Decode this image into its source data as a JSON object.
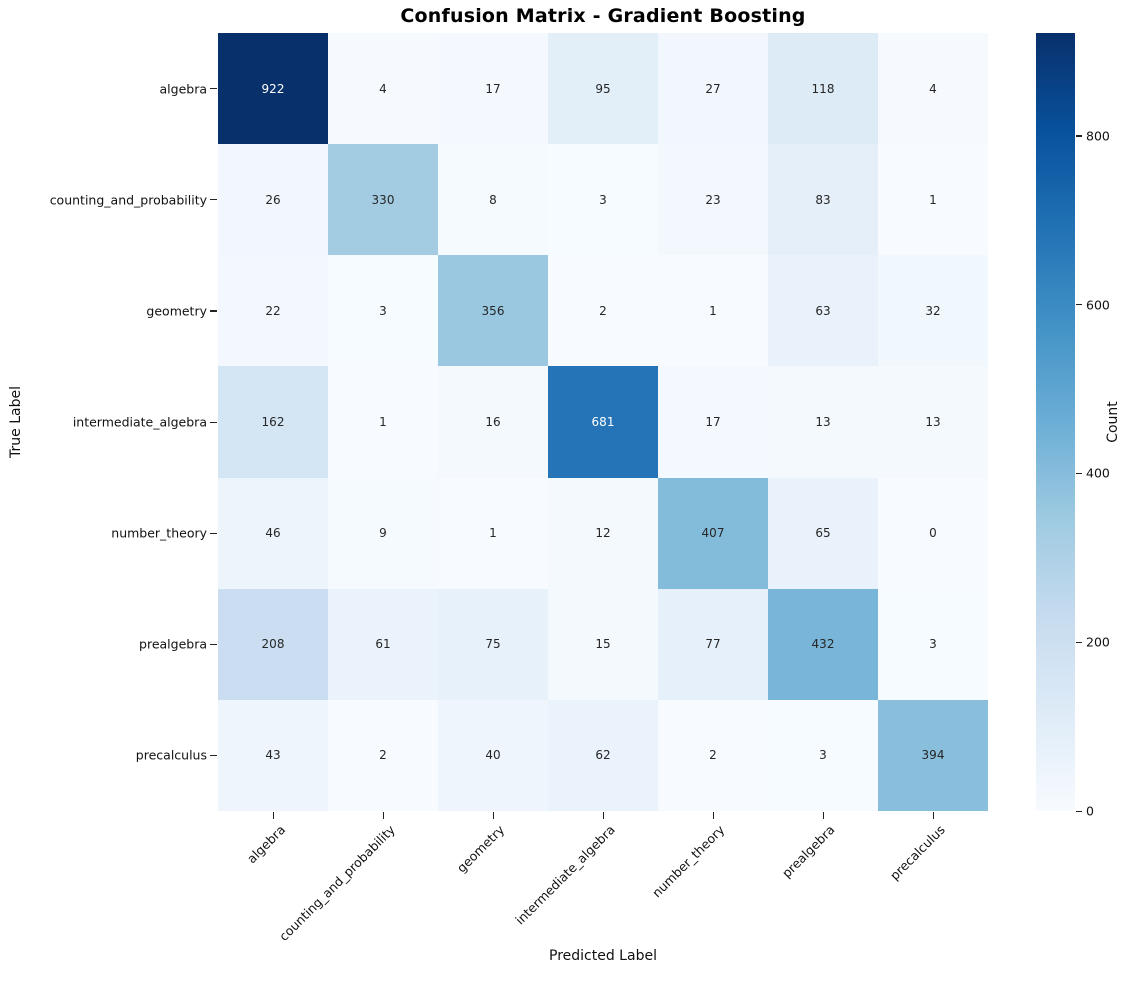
{
  "title": "Confusion Matrix - Gradient Boosting",
  "chart_data": {
    "type": "heatmap",
    "title": "Confusion Matrix - Gradient Boosting",
    "xlabel": "Predicted Label",
    "ylabel": "True Label",
    "x_categories": [
      "algebra",
      "counting_and_probability",
      "geometry",
      "intermediate_algebra",
      "number_theory",
      "prealgebra",
      "precalculus"
    ],
    "y_categories": [
      "algebra",
      "counting_and_probability",
      "geometry",
      "intermediate_algebra",
      "number_theory",
      "prealgebra",
      "precalculus"
    ],
    "matrix": [
      [
        922,
        4,
        17,
        95,
        27,
        118,
        4
      ],
      [
        26,
        330,
        8,
        3,
        23,
        83,
        1
      ],
      [
        22,
        3,
        356,
        2,
        1,
        63,
        32
      ],
      [
        162,
        1,
        16,
        681,
        17,
        13,
        13
      ],
      [
        46,
        9,
        1,
        12,
        407,
        65,
        0
      ],
      [
        208,
        61,
        75,
        15,
        77,
        432,
        3
      ],
      [
        43,
        2,
        40,
        62,
        2,
        3,
        394
      ]
    ],
    "vmin": 0,
    "vmax": 922,
    "grid": false,
    "colorbar": {
      "label": "Count",
      "ticks": [
        0,
        200,
        400,
        600,
        800
      ]
    },
    "colormap": {
      "name": "Blues",
      "stops": [
        "#f7fbff",
        "#deebf7",
        "#c6dbef",
        "#9ecae1",
        "#6baed6",
        "#4292c6",
        "#2171b5",
        "#08519c",
        "#08306b"
      ]
    },
    "annotation_colors": {
      "dark_text": "#262626",
      "light_text": "#ffffff"
    }
  }
}
